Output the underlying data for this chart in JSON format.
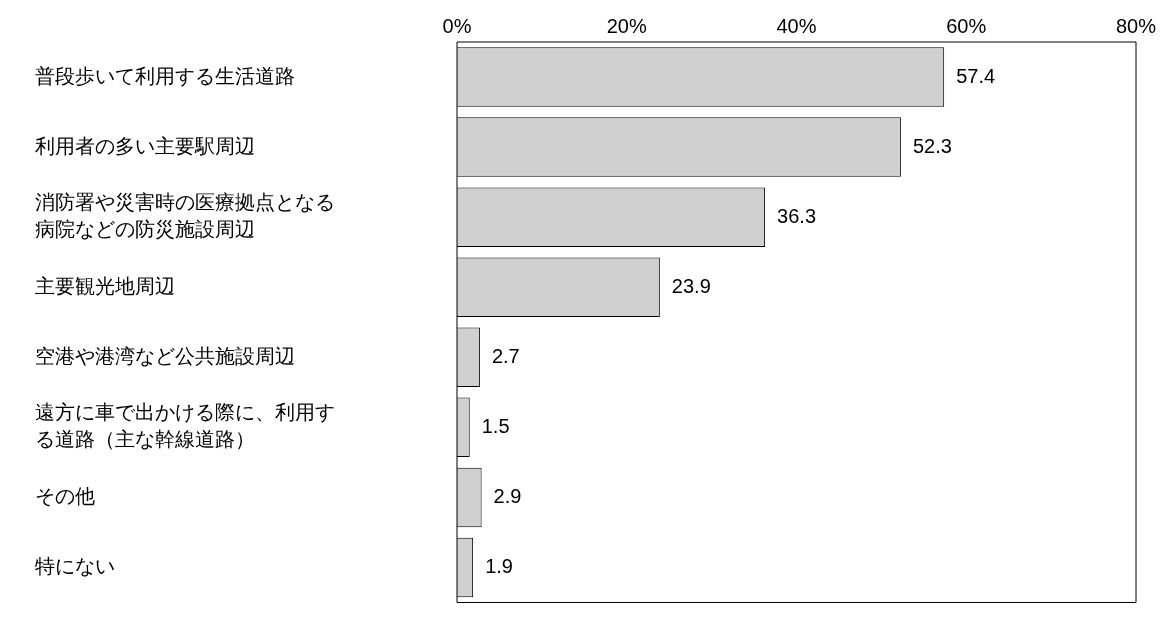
{
  "chart_data": {
    "type": "bar",
    "orientation": "horizontal",
    "categories": [
      "普段歩いて利用する生活道路",
      "利用者の多い主要駅周辺",
      "消防署や災害時の医療拠点となる病院などの防災施設周辺",
      "主要観光地周辺",
      "空港や港湾など公共施設周辺",
      "遠方に車で出かける際に、利用する道路（主な幹線道路）",
      "その他",
      "特にない"
    ],
    "values": [
      57.4,
      52.3,
      36.3,
      23.9,
      2.7,
      1.5,
      2.9,
      1.9
    ],
    "color": "#d0d0d0",
    "xlim": [
      0,
      80
    ],
    "xticks": [
      {
        "value": 0,
        "label": "0%"
      },
      {
        "value": 20,
        "label": "20%"
      },
      {
        "value": 40,
        "label": "40%"
      },
      {
        "value": 60,
        "label": "60%"
      },
      {
        "value": 80,
        "label": "80%"
      }
    ],
    "data_labels": true,
    "grid": false,
    "legend": false
  }
}
